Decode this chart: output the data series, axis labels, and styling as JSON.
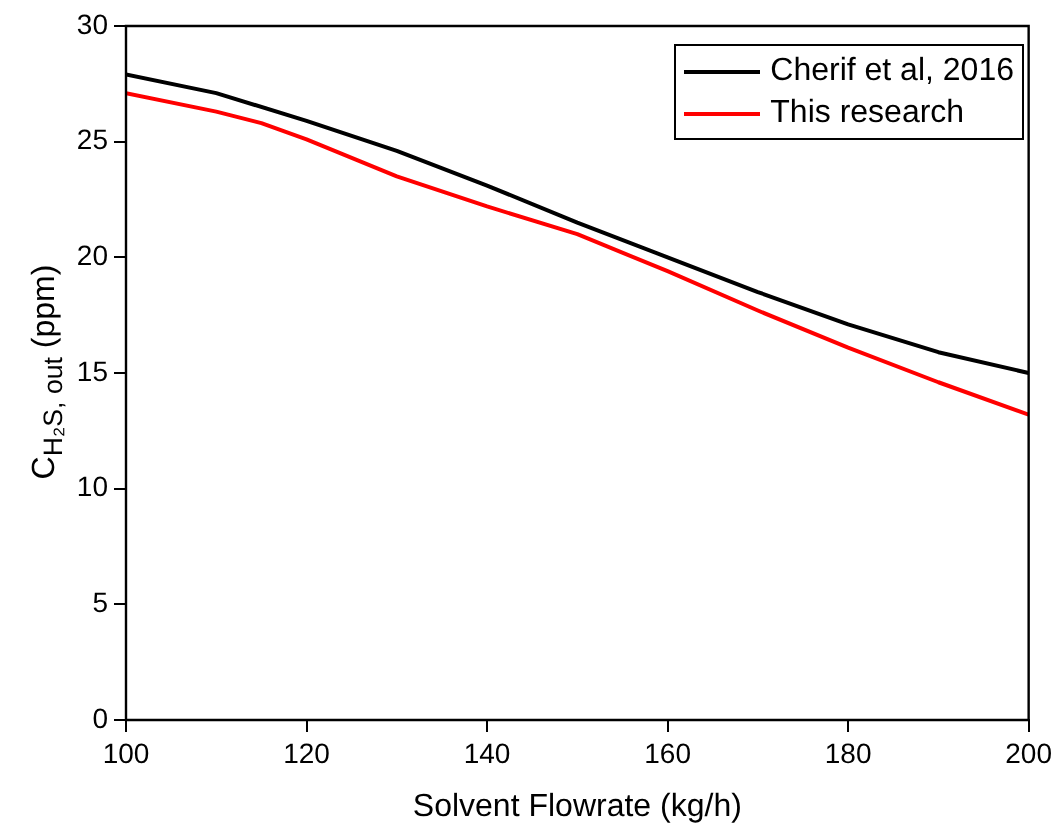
{
  "chart_data": {
    "type": "line",
    "xlabel": "Solvent Flowrate (kg/h)",
    "ylabel": "C$_{H₂S, out}$ (ppm)",
    "xlim": [
      100,
      200
    ],
    "xticks": [
      100,
      120,
      140,
      160,
      180,
      200
    ],
    "ylim": [
      0,
      30
    ],
    "yticks": [
      0,
      5,
      10,
      15,
      20,
      25,
      30
    ],
    "grid": false,
    "legend": "top right",
    "marker": "none",
    "line_style": "solid",
    "series": [
      {
        "name": "Cherif et al, 2016",
        "color": "#000000",
        "x": [
          100,
          110,
          120,
          130,
          140,
          150,
          160,
          170,
          180,
          190,
          200
        ],
        "values": [
          27.9,
          27.1,
          25.9,
          24.6,
          23.1,
          21.5,
          20.0,
          18.5,
          17.1,
          15.9,
          15.0
        ]
      },
      {
        "name": "This research",
        "color": "#ff0000",
        "x": [
          100,
          110,
          115,
          120,
          130,
          140,
          150,
          160,
          170,
          180,
          190,
          200
        ],
        "values": [
          27.1,
          26.3,
          25.8,
          25.1,
          23.5,
          22.2,
          21.0,
          19.4,
          17.7,
          16.1,
          14.6,
          13.2
        ]
      }
    ]
  }
}
